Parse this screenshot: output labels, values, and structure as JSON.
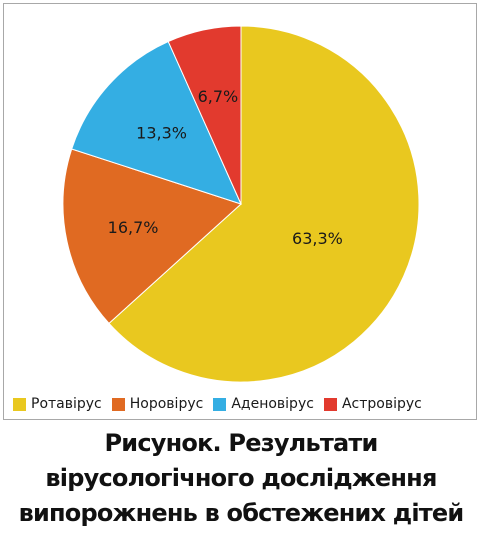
{
  "chart_data": {
    "type": "pie",
    "categories": [
      "Ротавірус",
      "Норовірус",
      "Аденовірус",
      "Астровірус"
    ],
    "values": [
      63.3,
      16.7,
      13.3,
      6.7
    ],
    "labels": [
      "63,3%",
      "16,7%",
      "13,3%",
      "6,7%"
    ],
    "colors": [
      "#e9c81f",
      "#e06a22",
      "#34aee3",
      "#e23a2e"
    ],
    "legend_position": "bottom"
  },
  "caption": {
    "line1": "Рисунок. Результати",
    "line2": "вірусологічного дослідження",
    "line3": "випорожнень в обстежених дітей"
  }
}
